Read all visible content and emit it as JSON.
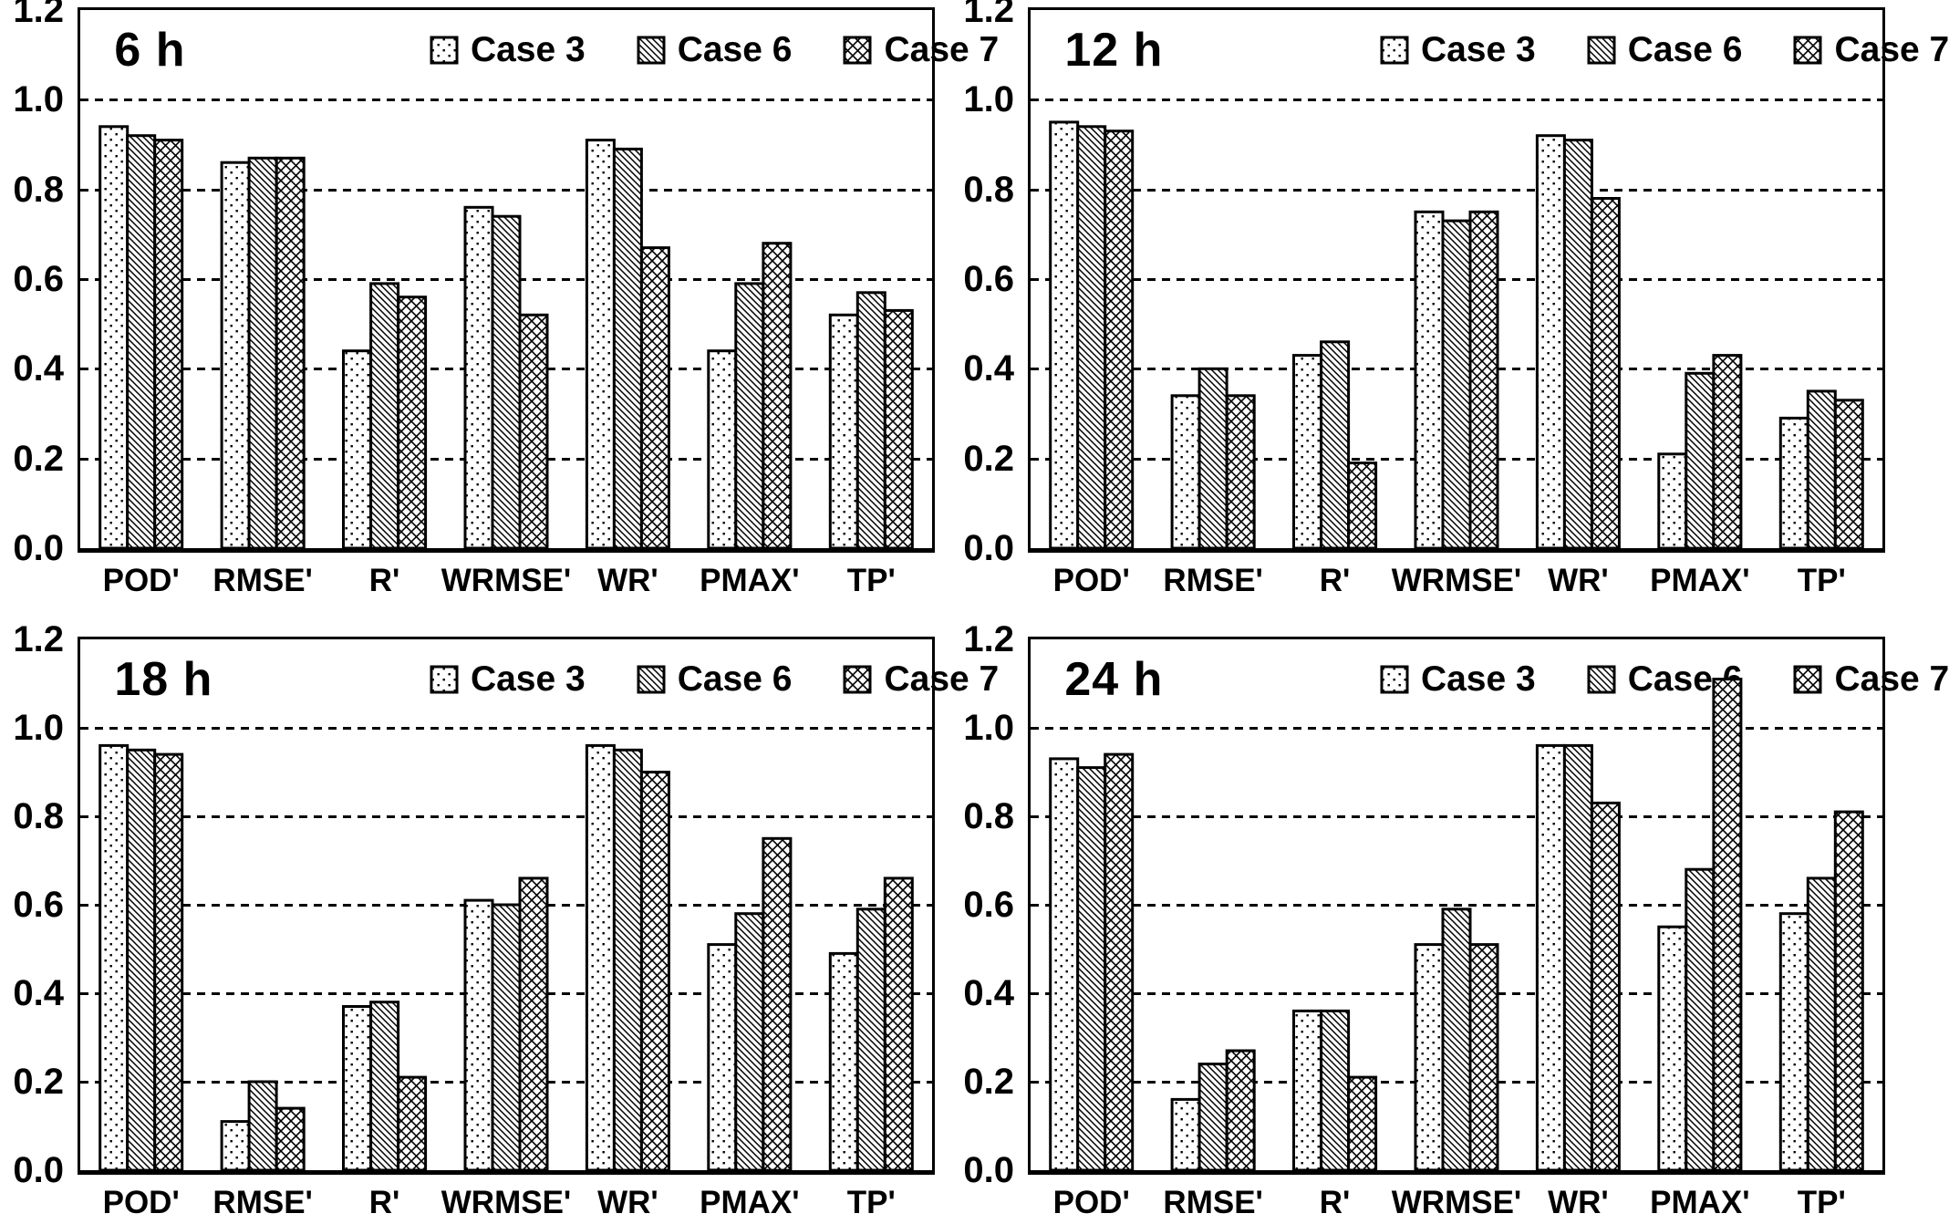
{
  "figure": {
    "background": "#ffffff",
    "ink_color": "#000000",
    "description": "2x2 grid of grouped bar chart panels comparing three cases across seven verification metrics at four lead times"
  },
  "legend": {
    "items": [
      {
        "label": "Case 3",
        "pattern": "dots"
      },
      {
        "label": "Case 6",
        "pattern": "diag"
      },
      {
        "label": "Case 7",
        "pattern": "cross"
      }
    ]
  },
  "axes": {
    "yticks": [
      "0.0",
      "0.2",
      "0.4",
      "0.6",
      "0.8",
      "1.0",
      "1.2"
    ],
    "ylim": [
      0,
      1.2
    ],
    "grid": "dashed-horizontal"
  },
  "chart_data": [
    {
      "type": "bar",
      "title": "6 h",
      "categories": [
        "POD'",
        "RMSE'",
        "R'",
        "WRMSE'",
        "WR'",
        "PMAX'",
        "TP'"
      ],
      "series": [
        {
          "name": "Case 3",
          "pattern": "dots",
          "values": [
            0.94,
            0.86,
            0.44,
            0.76,
            0.91,
            0.44,
            0.52
          ]
        },
        {
          "name": "Case 6",
          "pattern": "diag",
          "values": [
            0.92,
            0.87,
            0.59,
            0.74,
            0.89,
            0.59,
            0.57
          ]
        },
        {
          "name": "Case 7",
          "pattern": "cross",
          "values": [
            0.91,
            0.87,
            0.56,
            0.52,
            0.67,
            0.68,
            0.53
          ]
        }
      ],
      "ylim": [
        0,
        1.2
      ],
      "grid": "dashed-horizontal",
      "legend_position": "top-center"
    },
    {
      "type": "bar",
      "title": "12 h",
      "categories": [
        "POD'",
        "RMSE'",
        "R'",
        "WRMSE'",
        "WR'",
        "PMAX'",
        "TP'"
      ],
      "series": [
        {
          "name": "Case 3",
          "pattern": "dots",
          "values": [
            0.95,
            0.34,
            0.43,
            0.75,
            0.92,
            0.21,
            0.29
          ]
        },
        {
          "name": "Case 6",
          "pattern": "diag",
          "values": [
            0.94,
            0.4,
            0.46,
            0.73,
            0.91,
            0.39,
            0.35
          ]
        },
        {
          "name": "Case 7",
          "pattern": "cross",
          "values": [
            0.93,
            0.34,
            0.19,
            0.75,
            0.78,
            0.43,
            0.33
          ]
        }
      ],
      "ylim": [
        0,
        1.2
      ],
      "grid": "dashed-horizontal",
      "legend_position": "top-center"
    },
    {
      "type": "bar",
      "title": "18 h",
      "categories": [
        "POD'",
        "RMSE'",
        "R'",
        "WRMSE'",
        "WR'",
        "PMAX'",
        "TP'"
      ],
      "series": [
        {
          "name": "Case 3",
          "pattern": "dots",
          "values": [
            0.96,
            0.11,
            0.37,
            0.61,
            0.96,
            0.51,
            0.49
          ]
        },
        {
          "name": "Case 6",
          "pattern": "diag",
          "values": [
            0.95,
            0.2,
            0.38,
            0.6,
            0.95,
            0.58,
            0.59
          ]
        },
        {
          "name": "Case 7",
          "pattern": "cross",
          "values": [
            0.94,
            0.14,
            0.21,
            0.66,
            0.9,
            0.75,
            0.66
          ]
        }
      ],
      "ylim": [
        0,
        1.2
      ],
      "grid": "dashed-horizontal",
      "legend_position": "top-center"
    },
    {
      "type": "bar",
      "title": "24 h",
      "categories": [
        "POD'",
        "RMSE'",
        "R'",
        "WRMSE'",
        "WR'",
        "PMAX'",
        "TP'"
      ],
      "series": [
        {
          "name": "Case 3",
          "pattern": "dots",
          "values": [
            0.93,
            0.16,
            0.36,
            0.51,
            0.96,
            0.55,
            0.58
          ]
        },
        {
          "name": "Case 6",
          "pattern": "diag",
          "values": [
            0.91,
            0.24,
            0.36,
            0.59,
            0.96,
            0.68,
            0.66
          ]
        },
        {
          "name": "Case 7",
          "pattern": "cross",
          "values": [
            0.94,
            0.27,
            0.21,
            0.51,
            0.83,
            1.11,
            0.81
          ]
        }
      ],
      "ylim": [
        0,
        1.2
      ],
      "grid": "dashed-horizontal",
      "legend_position": "top-center"
    }
  ]
}
